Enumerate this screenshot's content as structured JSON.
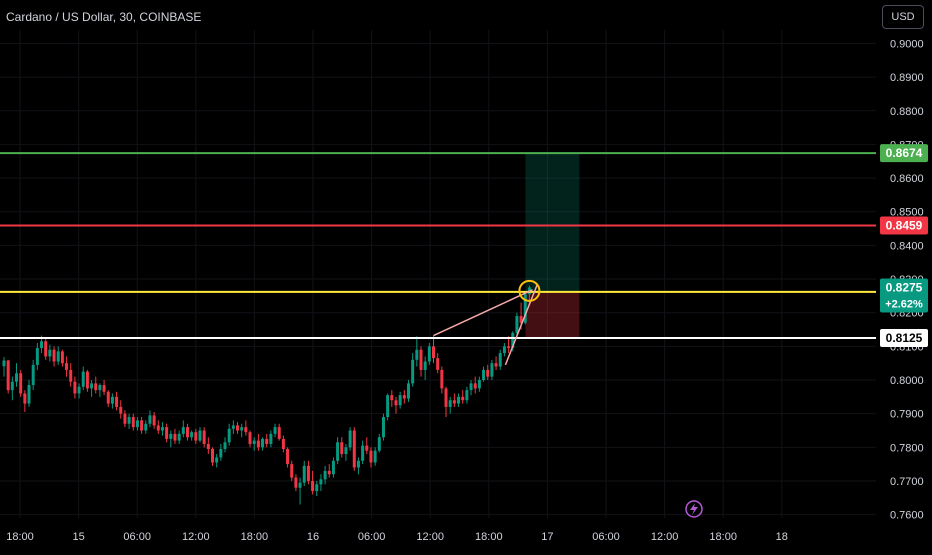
{
  "header": {
    "title": "Cardano / US Dollar, 30, COINBASE"
  },
  "currency_button": {
    "label": "USD"
  },
  "chart_data": {
    "type": "candlestick",
    "symbol": "Cardano / US Dollar",
    "interval": "30",
    "exchange": "COINBASE",
    "y_axis": {
      "range": [
        0.759,
        0.904
      ],
      "ticks": [
        "0.9000",
        "0.8900",
        "0.8800",
        "0.8700",
        "0.8600",
        "0.8500",
        "0.8400",
        "0.8300",
        "0.8200",
        "0.8100",
        "0.8000",
        "0.7900",
        "0.7800",
        "0.7700",
        "0.7600"
      ]
    },
    "x_axis": {
      "ticks": [
        "18:00",
        "15",
        "06:00",
        "12:00",
        "18:00",
        "16",
        "06:00",
        "12:00",
        "18:00",
        "17",
        "06:00",
        "12:00",
        "18:00",
        "18"
      ]
    },
    "last_bar_index": 134,
    "bar_count_span": 205,
    "horizontal_lines": [
      {
        "name": "take-profit-line",
        "value": 0.8674,
        "label": "0.8674",
        "color": "#4caf50"
      },
      {
        "name": "red-level-line",
        "value": 0.8459,
        "label": "0.8459",
        "color": "#f23645"
      },
      {
        "name": "entry-line",
        "value": 0.8262,
        "label": "",
        "color": "#ffeb3b"
      },
      {
        "name": "support-line",
        "value": 0.8125,
        "label": "0.8125",
        "color": "#ffffff"
      }
    ],
    "price_label": {
      "value": "0.8275",
      "change": "+2.62%",
      "color": "#089981"
    },
    "position": {
      "entry": 0.8262,
      "target": 0.8674,
      "stop": 0.8125
    },
    "colors": {
      "up": "#089981",
      "down": "#f23645",
      "background": "#000000",
      "axis_text": "#d1d4dc"
    },
    "candles": [
      [
        0.8041,
        0.8068,
        0.801,
        0.8058
      ],
      [
        0.8058,
        0.806,
        0.796,
        0.797
      ],
      [
        0.797,
        0.801,
        0.794,
        0.7995
      ],
      [
        0.7995,
        0.805,
        0.798,
        0.802
      ],
      [
        0.802,
        0.803,
        0.795,
        0.796
      ],
      [
        0.796,
        0.797,
        0.7905,
        0.793
      ],
      [
        0.793,
        0.8,
        0.792,
        0.7985
      ],
      [
        0.7985,
        0.806,
        0.797,
        0.8045
      ],
      [
        0.8045,
        0.811,
        0.803,
        0.8095
      ],
      [
        0.8095,
        0.8132,
        0.808,
        0.8115
      ],
      [
        0.8115,
        0.8125,
        0.806,
        0.807
      ],
      [
        0.807,
        0.8105,
        0.8055,
        0.809
      ],
      [
        0.809,
        0.81,
        0.804,
        0.8055
      ],
      [
        0.8055,
        0.81,
        0.8045,
        0.8085
      ],
      [
        0.8085,
        0.809,
        0.804,
        0.805
      ],
      [
        0.805,
        0.807,
        0.801,
        0.803
      ],
      [
        0.803,
        0.805,
        0.798,
        0.7995
      ],
      [
        0.7995,
        0.801,
        0.7945,
        0.796
      ],
      [
        0.796,
        0.799,
        0.7945,
        0.798
      ],
      [
        0.798,
        0.804,
        0.797,
        0.8025
      ],
      [
        0.8025,
        0.803,
        0.7965,
        0.7975
      ],
      [
        0.7975,
        0.8,
        0.795,
        0.799
      ],
      [
        0.799,
        0.801,
        0.796,
        0.797
      ],
      [
        0.797,
        0.799,
        0.795,
        0.7985
      ],
      [
        0.7985,
        0.8,
        0.7955,
        0.7965
      ],
      [
        0.7965,
        0.797,
        0.792,
        0.793
      ],
      [
        0.793,
        0.796,
        0.7915,
        0.795
      ],
      [
        0.795,
        0.7965,
        0.791,
        0.792
      ],
      [
        0.792,
        0.794,
        0.7885,
        0.79
      ],
      [
        0.79,
        0.791,
        0.786,
        0.787
      ],
      [
        0.787,
        0.79,
        0.7855,
        0.789
      ],
      [
        0.789,
        0.79,
        0.785,
        0.786
      ],
      [
        0.786,
        0.789,
        0.785,
        0.788
      ],
      [
        0.788,
        0.789,
        0.784,
        0.785
      ],
      [
        0.785,
        0.788,
        0.784,
        0.787
      ],
      [
        0.787,
        0.791,
        0.786,
        0.7895
      ],
      [
        0.7895,
        0.7905,
        0.7855,
        0.7865
      ],
      [
        0.7865,
        0.788,
        0.784,
        0.785
      ],
      [
        0.785,
        0.7875,
        0.7835,
        0.786
      ],
      [
        0.786,
        0.787,
        0.7815,
        0.7825
      ],
      [
        0.7825,
        0.785,
        0.78,
        0.784
      ],
      [
        0.784,
        0.7855,
        0.781,
        0.782
      ],
      [
        0.782,
        0.785,
        0.781,
        0.784
      ],
      [
        0.784,
        0.788,
        0.783,
        0.786
      ],
      [
        0.786,
        0.787,
        0.782,
        0.783
      ],
      [
        0.783,
        0.785,
        0.782,
        0.7845
      ],
      [
        0.7845,
        0.7855,
        0.781,
        0.782
      ],
      [
        0.782,
        0.786,
        0.7815,
        0.785
      ],
      [
        0.785,
        0.786,
        0.78,
        0.781
      ],
      [
        0.781,
        0.783,
        0.778,
        0.7795
      ],
      [
        0.7795,
        0.78,
        0.7745,
        0.7755
      ],
      [
        0.7755,
        0.778,
        0.774,
        0.777
      ],
      [
        0.777,
        0.781,
        0.776,
        0.7795
      ],
      [
        0.7795,
        0.783,
        0.7785,
        0.7815
      ],
      [
        0.7815,
        0.787,
        0.7805,
        0.7855
      ],
      [
        0.7855,
        0.788,
        0.784,
        0.7865
      ],
      [
        0.7865,
        0.7875,
        0.784,
        0.785
      ],
      [
        0.785,
        0.787,
        0.783,
        0.786
      ],
      [
        0.786,
        0.788,
        0.7835,
        0.7845
      ],
      [
        0.7845,
        0.785,
        0.78,
        0.781
      ],
      [
        0.781,
        0.783,
        0.779,
        0.782
      ],
      [
        0.782,
        0.784,
        0.779,
        0.78
      ],
      [
        0.78,
        0.783,
        0.779,
        0.7825
      ],
      [
        0.7825,
        0.784,
        0.78,
        0.781
      ],
      [
        0.781,
        0.785,
        0.78,
        0.784
      ],
      [
        0.784,
        0.787,
        0.783,
        0.786
      ],
      [
        0.786,
        0.787,
        0.782,
        0.7825
      ],
      [
        0.7825,
        0.7835,
        0.7785,
        0.7795
      ],
      [
        0.7795,
        0.78,
        0.774,
        0.775
      ],
      [
        0.775,
        0.776,
        0.77,
        0.771
      ],
      [
        0.771,
        0.772,
        0.767,
        0.768
      ],
      [
        0.768,
        0.771,
        0.763,
        0.7695
      ],
      [
        0.7695,
        0.776,
        0.7685,
        0.7745
      ],
      [
        0.7745,
        0.776,
        0.769,
        0.77
      ],
      [
        0.77,
        0.773,
        0.766,
        0.767
      ],
      [
        0.767,
        0.77,
        0.7655,
        0.769
      ],
      [
        0.769,
        0.772,
        0.767,
        0.7705
      ],
      [
        0.7705,
        0.7745,
        0.769,
        0.773
      ],
      [
        0.773,
        0.775,
        0.771,
        0.772
      ],
      [
        0.772,
        0.777,
        0.771,
        0.776
      ],
      [
        0.776,
        0.783,
        0.775,
        0.7815
      ],
      [
        0.7815,
        0.783,
        0.777,
        0.778
      ],
      [
        0.778,
        0.781,
        0.776,
        0.78
      ],
      [
        0.78,
        0.786,
        0.779,
        0.785
      ],
      [
        0.785,
        0.786,
        0.773,
        0.774
      ],
      [
        0.774,
        0.777,
        0.772,
        0.776
      ],
      [
        0.776,
        0.782,
        0.775,
        0.7805
      ],
      [
        0.7805,
        0.783,
        0.778,
        0.779
      ],
      [
        0.779,
        0.78,
        0.774,
        0.7755
      ],
      [
        0.7755,
        0.78,
        0.7745,
        0.779
      ],
      [
        0.779,
        0.784,
        0.7785,
        0.783
      ],
      [
        0.783,
        0.79,
        0.782,
        0.789
      ],
      [
        0.789,
        0.796,
        0.788,
        0.7955
      ],
      [
        0.7955,
        0.797,
        0.792,
        0.794
      ],
      [
        0.794,
        0.795,
        0.79,
        0.7925
      ],
      [
        0.7925,
        0.7965,
        0.7915,
        0.7955
      ],
      [
        0.7955,
        0.797,
        0.793,
        0.7945
      ],
      [
        0.7945,
        0.8,
        0.7935,
        0.799
      ],
      [
        0.799,
        0.808,
        0.798,
        0.806
      ],
      [
        0.806,
        0.813,
        0.804,
        0.809
      ],
      [
        0.809,
        0.81,
        0.801,
        0.803
      ],
      [
        0.803,
        0.807,
        0.8,
        0.8055
      ],
      [
        0.8055,
        0.811,
        0.8045,
        0.81
      ],
      [
        0.81,
        0.8132,
        0.805,
        0.8065
      ],
      [
        0.8065,
        0.808,
        0.802,
        0.803
      ],
      [
        0.803,
        0.804,
        0.796,
        0.7975
      ],
      [
        0.7975,
        0.798,
        0.789,
        0.792
      ],
      [
        0.792,
        0.795,
        0.79,
        0.794
      ],
      [
        0.794,
        0.796,
        0.792,
        0.793
      ],
      [
        0.793,
        0.796,
        0.792,
        0.795
      ],
      [
        0.795,
        0.797,
        0.793,
        0.794
      ],
      [
        0.794,
        0.798,
        0.793,
        0.797
      ],
      [
        0.797,
        0.8,
        0.7955,
        0.799
      ],
      [
        0.799,
        0.801,
        0.796,
        0.7975
      ],
      [
        0.7975,
        0.801,
        0.7965,
        0.8
      ],
      [
        0.8,
        0.804,
        0.7995,
        0.803
      ],
      [
        0.803,
        0.8045,
        0.8,
        0.801
      ],
      [
        0.801,
        0.806,
        0.8,
        0.805
      ],
      [
        0.805,
        0.807,
        0.803,
        0.804
      ],
      [
        0.804,
        0.809,
        0.803,
        0.808
      ],
      [
        0.808,
        0.811,
        0.807,
        0.81
      ],
      [
        0.81,
        0.813,
        0.808,
        0.8095
      ],
      [
        0.8095,
        0.8145,
        0.8085,
        0.814
      ],
      [
        0.814,
        0.82,
        0.813,
        0.819
      ],
      [
        0.819,
        0.823,
        0.815,
        0.817
      ],
      [
        0.817,
        0.826,
        0.8165,
        0.8255
      ],
      [
        0.8255,
        0.828,
        0.8225,
        0.8275
      ]
    ]
  }
}
